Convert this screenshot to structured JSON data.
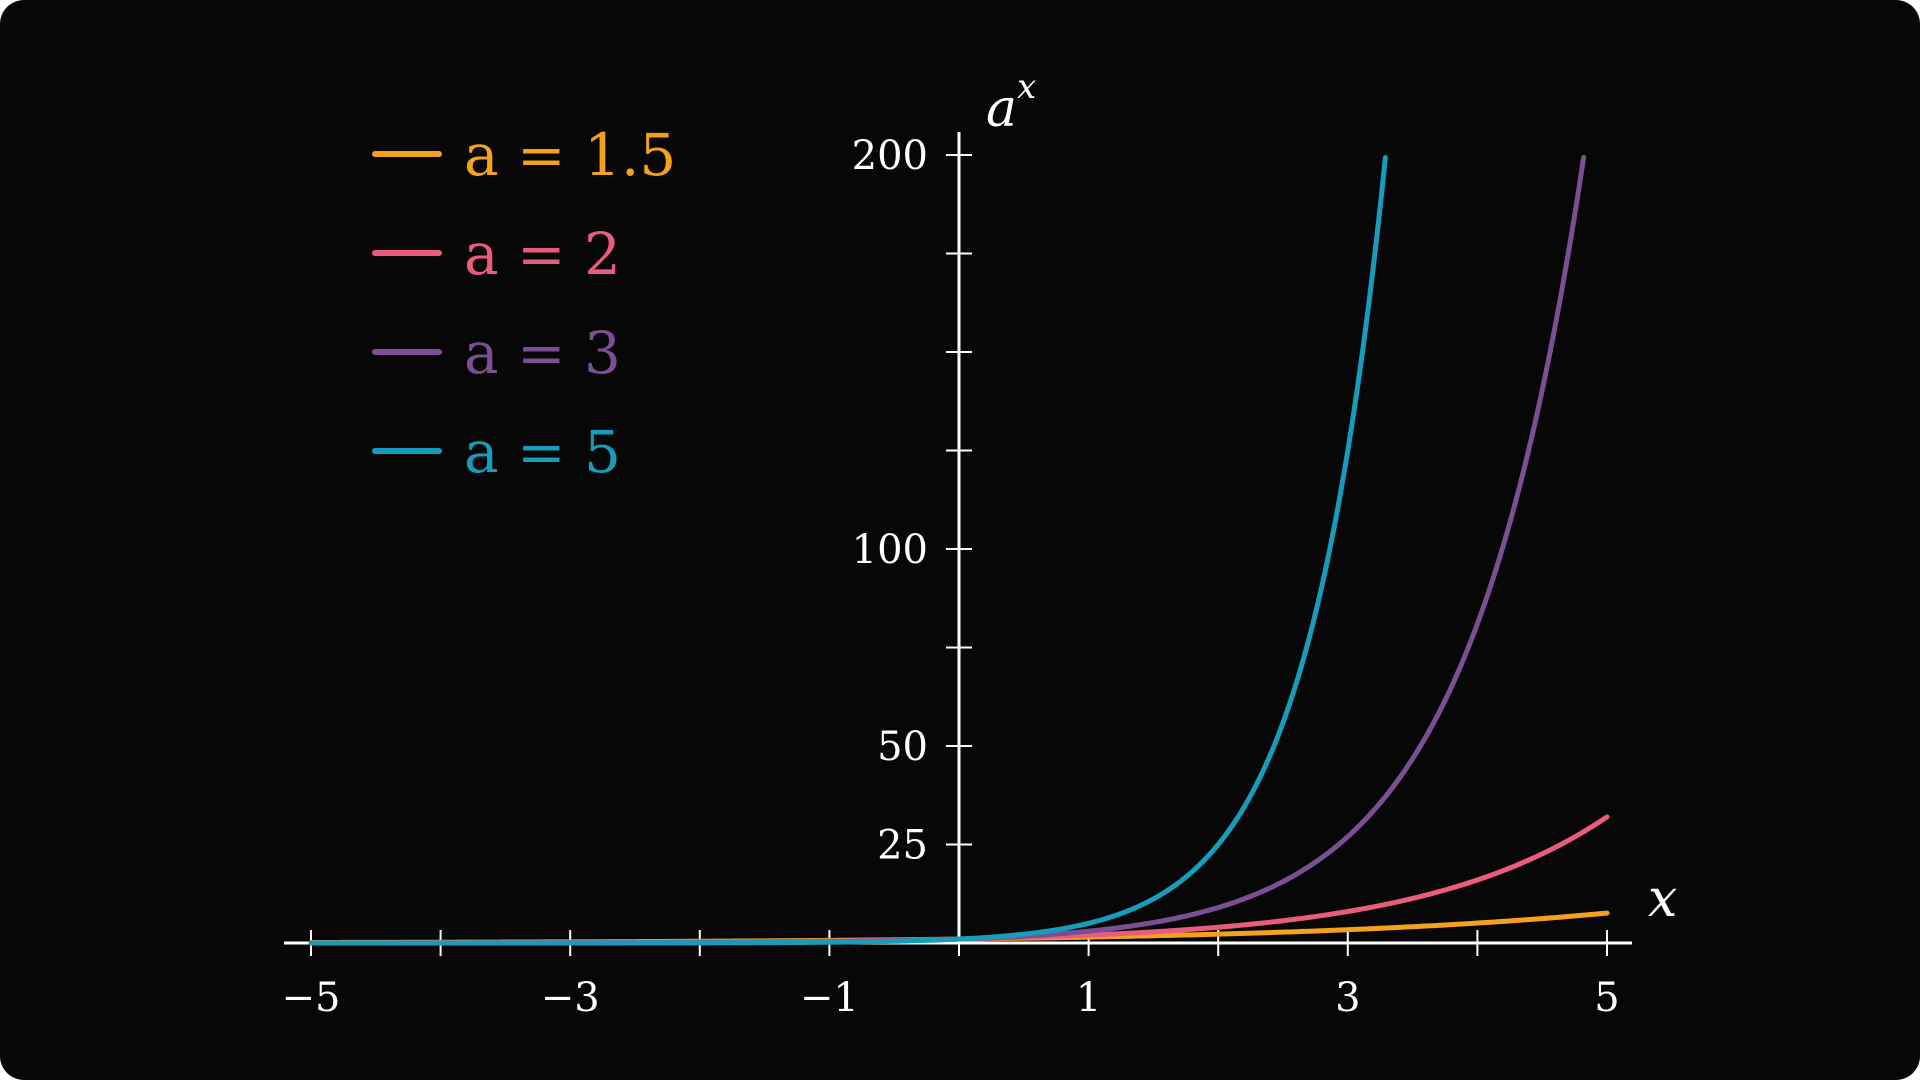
{
  "chart_data": {
    "type": "line",
    "xlabel": "x",
    "ylabel": "a^x",
    "xlim": [
      -5,
      5
    ],
    "ylim": [
      0,
      200
    ],
    "grid": false,
    "legend_position": "top-left",
    "x_ticks": [
      -5,
      -4,
      -3,
      -2,
      -1,
      0,
      1,
      2,
      3,
      4,
      5
    ],
    "x_tick_labels": [
      "−5",
      "",
      "−3",
      "",
      "−1",
      "",
      "1",
      "",
      "3",
      "",
      "5"
    ],
    "y_ticks": [
      25,
      50,
      75,
      100,
      125,
      150,
      175,
      200
    ],
    "y_tick_labels": [
      "25",
      "50",
      "",
      "100",
      "",
      "",
      "",
      "200"
    ],
    "series": [
      {
        "name": "a = 1.5",
        "base": 1.5,
        "color": "#f4a11b",
        "x": [
          -5,
          -4,
          -3,
          -2,
          -1,
          0,
          1,
          2,
          3,
          4,
          5
        ],
        "y": [
          0.132,
          0.198,
          0.296,
          0.444,
          0.667,
          1,
          1.5,
          2.25,
          3.375,
          5.063,
          7.594
        ]
      },
      {
        "name": "a = 2",
        "base": 2,
        "color": "#ea5c7b",
        "x": [
          -5,
          -4,
          -3,
          -2,
          -1,
          0,
          1,
          2,
          3,
          4,
          5
        ],
        "y": [
          0.031,
          0.063,
          0.125,
          0.25,
          0.5,
          1,
          2,
          4,
          8,
          16,
          32
        ]
      },
      {
        "name": "a = 3",
        "base": 3,
        "color": "#7c4e94",
        "x": [
          -5,
          -4,
          -3,
          -2,
          -1,
          0,
          1,
          2,
          3,
          4,
          4.82
        ],
        "y": [
          0.004,
          0.012,
          0.037,
          0.111,
          0.333,
          1,
          3,
          9,
          27,
          81,
          200
        ]
      },
      {
        "name": "a = 5",
        "base": 5,
        "color": "#169dbb",
        "x": [
          -5,
          -4,
          -3,
          -2,
          -1,
          0,
          1,
          2,
          3,
          3.29
        ],
        "y": [
          0.0003,
          0.002,
          0.008,
          0.04,
          0.2,
          1,
          5,
          25,
          125,
          200
        ]
      }
    ]
  }
}
